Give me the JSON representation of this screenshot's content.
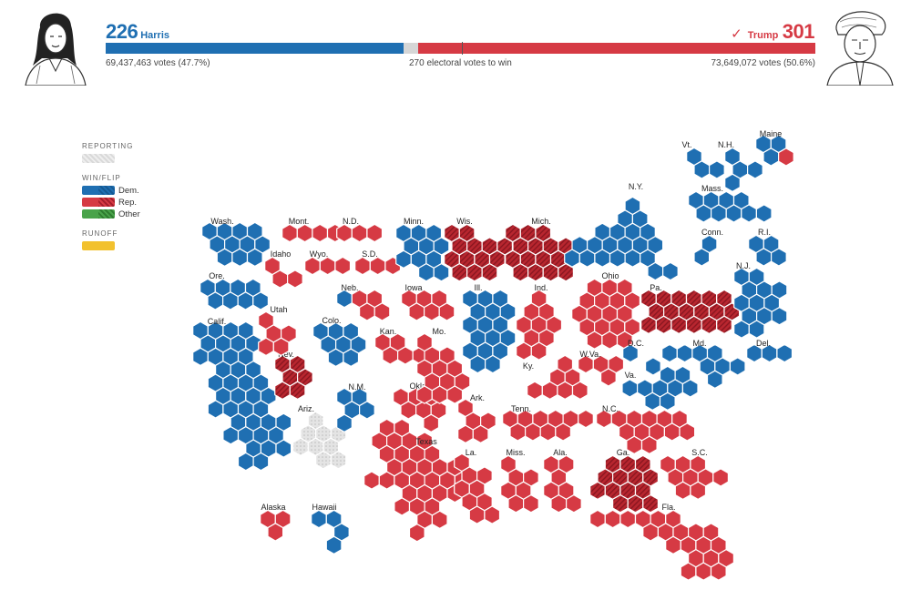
{
  "header": {
    "dem": {
      "ev": "226",
      "name": "Harris",
      "votes": "69,437,463 votes (47.7%)"
    },
    "rep": {
      "check": "✓",
      "ev": "301",
      "name": "Trump",
      "votes": "73,649,072 votes (50.6%)"
    },
    "to_win": "270 electoral votes to win",
    "bar": {
      "dem_ev": 226,
      "rep_ev": 301,
      "total_ev": 538,
      "to_win_ev": 270
    }
  },
  "legend": {
    "reporting": "REPORTING",
    "winflip": "WIN/FLIP",
    "dem": "Dem.",
    "rep": "Rep.",
    "other": "Other",
    "runoff": "RUNOFF"
  },
  "colors": {
    "dem": "#1f6fb2",
    "dem_flip": "#165a93",
    "rep": "#d63a44",
    "rep_flip": "#a51f2b",
    "other": "#49a34a",
    "reporting": "#d9d9d9",
    "runoff": "#f2c12e"
  },
  "states": [
    {
      "label": "Wash.",
      "party": "dem",
      "ev": 12
    },
    {
      "label": "Ore.",
      "party": "dem",
      "ev": 8
    },
    {
      "label": "Calif.",
      "party": "dem",
      "ev": 54
    },
    {
      "label": "Idaho",
      "party": "rep",
      "ev": 4
    },
    {
      "label": "Nev.",
      "party": "rep-flip",
      "ev": 6
    },
    {
      "label": "Utah",
      "party": "rep",
      "ev": 6
    },
    {
      "label": "Ariz.",
      "party": "reporting",
      "ev": 11
    },
    {
      "label": "Mont.",
      "party": "rep",
      "ev": 4
    },
    {
      "label": "Wyo.",
      "party": "rep",
      "ev": 3
    },
    {
      "label": "Colo.",
      "party": "dem",
      "ev": 10
    },
    {
      "label": "N.M.",
      "party": "dem",
      "ev": 5
    },
    {
      "label": "N.D.",
      "party": "rep",
      "ev": 3
    },
    {
      "label": "S.D.",
      "party": "rep",
      "ev": 3
    },
    {
      "label": "Neb.",
      "party": "rep",
      "ev": 5,
      "dem_split": 1
    },
    {
      "label": "Kan.",
      "party": "rep",
      "ev": 6
    },
    {
      "label": "Okla.",
      "party": "rep",
      "ev": 7
    },
    {
      "label": "Texas",
      "party": "rep",
      "ev": 40
    },
    {
      "label": "Minn.",
      "party": "dem",
      "ev": 10
    },
    {
      "label": "Iowa",
      "party": "rep",
      "ev": 6
    },
    {
      "label": "Mo.",
      "party": "rep",
      "ev": 10
    },
    {
      "label": "Ark.",
      "party": "rep",
      "ev": 6
    },
    {
      "label": "La.",
      "party": "rep",
      "ev": 8
    },
    {
      "label": "Wis.",
      "party": "rep-flip",
      "ev": 10
    },
    {
      "label": "Ill.",
      "party": "dem",
      "ev": 19
    },
    {
      "label": "Mich.",
      "party": "rep-flip",
      "ev": 15
    },
    {
      "label": "Ind.",
      "party": "rep",
      "ev": 11
    },
    {
      "label": "Ky.",
      "party": "rep",
      "ev": 8
    },
    {
      "label": "Tenn.",
      "party": "rep",
      "ev": 11
    },
    {
      "label": "Miss.",
      "party": "rep",
      "ev": 6
    },
    {
      "label": "Ala.",
      "party": "rep",
      "ev": 9
    },
    {
      "label": "Ohio",
      "party": "rep",
      "ev": 17
    },
    {
      "label": "W.Va.",
      "party": "rep",
      "ev": 4
    },
    {
      "label": "Ga.",
      "party": "rep-flip",
      "ev": 16
    },
    {
      "label": "Fla.",
      "party": "rep",
      "ev": 30
    },
    {
      "label": "S.C.",
      "party": "rep",
      "ev": 9
    },
    {
      "label": "N.C.",
      "party": "rep",
      "ev": 16
    },
    {
      "label": "Va.",
      "party": "dem",
      "ev": 13
    },
    {
      "label": "Pa.",
      "party": "rep-flip",
      "ev": 19
    },
    {
      "label": "N.Y.",
      "party": "dem",
      "ev": 28
    },
    {
      "label": "Vt.",
      "party": "dem",
      "ev": 3
    },
    {
      "label": "N.H.",
      "party": "dem",
      "ev": 4
    },
    {
      "label": "Maine",
      "party": "dem",
      "ev": 4,
      "rep_split": 1
    },
    {
      "label": "Mass.",
      "party": "dem",
      "ev": 11
    },
    {
      "label": "Conn.",
      "party": "dem",
      "ev": 7
    },
    {
      "label": "R.I.",
      "party": "dem",
      "ev": 4
    },
    {
      "label": "N.J.",
      "party": "dem",
      "ev": 14
    },
    {
      "label": "Del.",
      "party": "dem",
      "ev": 3
    },
    {
      "label": "Md.",
      "party": "dem",
      "ev": 10
    },
    {
      "label": "D.C.",
      "party": "dem",
      "ev": 3
    },
    {
      "label": "Alaska",
      "party": "rep",
      "ev": 3
    },
    {
      "label": "Hawaii",
      "party": "dem",
      "ev": 4
    }
  ]
}
